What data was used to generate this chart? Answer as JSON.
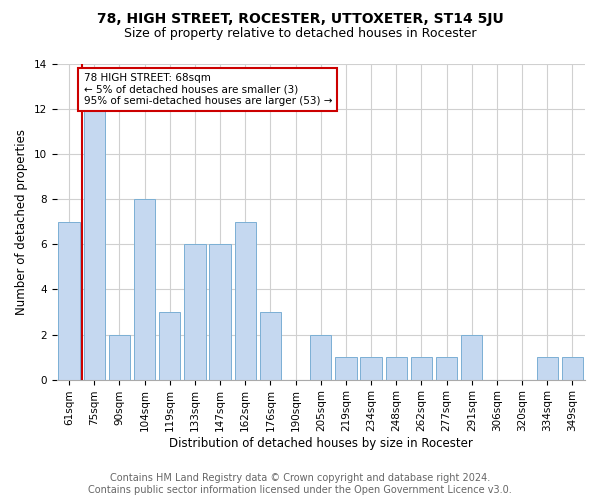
{
  "title": "78, HIGH STREET, ROCESTER, UTTOXETER, ST14 5JU",
  "subtitle": "Size of property relative to detached houses in Rocester",
  "xlabel": "Distribution of detached houses by size in Rocester",
  "ylabel": "Number of detached properties",
  "categories": [
    "61sqm",
    "75sqm",
    "90sqm",
    "104sqm",
    "119sqm",
    "133sqm",
    "147sqm",
    "162sqm",
    "176sqm",
    "190sqm",
    "205sqm",
    "219sqm",
    "234sqm",
    "248sqm",
    "262sqm",
    "277sqm",
    "291sqm",
    "306sqm",
    "320sqm",
    "334sqm",
    "349sqm"
  ],
  "values": [
    7,
    12,
    2,
    8,
    3,
    6,
    6,
    7,
    3,
    0,
    2,
    1,
    1,
    1,
    1,
    1,
    2,
    0,
    0,
    1,
    1
  ],
  "bar_color": "#c5d8f0",
  "bar_edge_color": "#7bafd4",
  "highlight_color": "#cc0000",
  "annotation_text": "78 HIGH STREET: 68sqm\n← 5% of detached houses are smaller (3)\n95% of semi-detached houses are larger (53) →",
  "annotation_box_color": "#ffffff",
  "annotation_box_edge_color": "#cc0000",
  "footer_line1": "Contains HM Land Registry data © Crown copyright and database right 2024.",
  "footer_line2": "Contains public sector information licensed under the Open Government Licence v3.0.",
  "ylim": [
    0,
    14
  ],
  "yticks": [
    0,
    2,
    4,
    6,
    8,
    10,
    12,
    14
  ],
  "background_color": "#ffffff",
  "grid_color": "#d0d0d0",
  "title_fontsize": 10,
  "subtitle_fontsize": 9,
  "label_fontsize": 8.5,
  "tick_fontsize": 7.5,
  "footer_fontsize": 7
}
